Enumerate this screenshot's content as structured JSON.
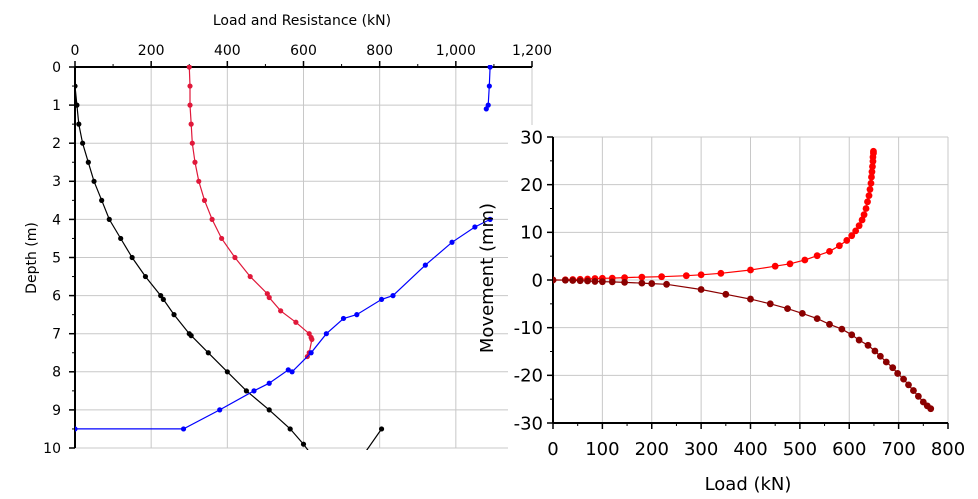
{
  "chart_data": [
    {
      "type": "line",
      "xlabel": "Load and Resistance (kN)",
      "ylabel": "Depth (m)",
      "xlim": [
        0,
        1200
      ],
      "ylim": [
        10,
        0
      ],
      "x_axis_position": "top",
      "y_inverted": true,
      "grid": true,
      "xticks": [
        0,
        200,
        400,
        600,
        800,
        1000,
        1200
      ],
      "xtick_labels": [
        "0",
        "200",
        "400",
        "600",
        "800",
        "1,000",
        "1,200"
      ],
      "yticks": [
        0,
        1,
        2,
        3,
        4,
        5,
        6,
        7,
        8,
        9,
        10
      ],
      "ytick_labels": [
        "0",
        "1",
        "2",
        "3",
        "4",
        "5",
        "6",
        "7",
        "8",
        "9",
        "10"
      ],
      "series": [
        {
          "color": "#000000",
          "points": [
            [
              0,
              0.5
            ],
            [
              5,
              1.0
            ],
            [
              10,
              1.5
            ],
            [
              20,
              2.0
            ],
            [
              35,
              2.5
            ],
            [
              50,
              3.0
            ],
            [
              70,
              3.5
            ],
            [
              90,
              4.0
            ],
            [
              120,
              4.5
            ],
            [
              150,
              5.0
            ],
            [
              185,
              5.5
            ],
            [
              225,
              6.0
            ],
            [
              232,
              6.1
            ],
            [
              260,
              6.5
            ],
            [
              300,
              7.0
            ],
            [
              305,
              7.05
            ],
            [
              350,
              7.5
            ],
            [
              400,
              8.0
            ],
            [
              450,
              8.5
            ],
            [
              510,
              9.0
            ],
            [
              565,
              9.5
            ],
            [
              600,
              9.9
            ],
            [
              630,
              10.3
            ],
            [
              700,
              11.0
            ],
            [
              805,
              9.5
            ]
          ]
        },
        {
          "color": "#e0183a",
          "points": [
            [
              300,
              0
            ],
            [
              302,
              0.5
            ],
            [
              302,
              1.0
            ],
            [
              305,
              1.5
            ],
            [
              308,
              2.0
            ],
            [
              315,
              2.5
            ],
            [
              325,
              3.0
            ],
            [
              340,
              3.5
            ],
            [
              360,
              4.0
            ],
            [
              385,
              4.5
            ],
            [
              420,
              5.0
            ],
            [
              460,
              5.5
            ],
            [
              505,
              5.95
            ],
            [
              510,
              6.05
            ],
            [
              540,
              6.4
            ],
            [
              580,
              6.7
            ],
            [
              615,
              7.0
            ],
            [
              620,
              7.1
            ],
            [
              622,
              7.15
            ],
            [
              615,
              7.5
            ],
            [
              610,
              7.6
            ]
          ]
        },
        {
          "color": "#0000ff",
          "points": [
            [
              1090,
              0
            ],
            [
              1088,
              0.5
            ],
            [
              1085,
              1.0
            ],
            [
              1080,
              1.1
            ]
          ]
        },
        {
          "color": "#0000ff",
          "points": [
            [
              0,
              9.5
            ],
            [
              285,
              9.5
            ],
            [
              380,
              9.0
            ],
            [
              470,
              8.5
            ],
            [
              510,
              8.3
            ],
            [
              560,
              7.95
            ],
            [
              570,
              8.0
            ],
            [
              620,
              7.5
            ],
            [
              660,
              7.0
            ],
            [
              705,
              6.6
            ],
            [
              740,
              6.5
            ],
            [
              805,
              6.1
            ],
            [
              835,
              6.0
            ],
            [
              920,
              5.2
            ],
            [
              990,
              4.6
            ],
            [
              1050,
              4.2
            ],
            [
              1090,
              4.0
            ]
          ]
        }
      ]
    },
    {
      "type": "line",
      "xlabel": "Load (kN)",
      "ylabel": "Movement (mm)",
      "xlim": [
        0,
        800
      ],
      "ylim": [
        -30,
        30
      ],
      "grid": true,
      "xticks": [
        0,
        100,
        200,
        300,
        400,
        500,
        600,
        700,
        800
      ],
      "xtick_labels": [
        "0",
        "100",
        "200",
        "300",
        "400",
        "500",
        "600",
        "700",
        "800"
      ],
      "yticks": [
        -30,
        -20,
        -10,
        0,
        10,
        20,
        30
      ],
      "ytick_labels": [
        "-30",
        "-20",
        "-10",
        "0",
        "10",
        "20",
        "30"
      ],
      "series": [
        {
          "color": "#ff0000",
          "points": [
            [
              0,
              0
            ],
            [
              25,
              0.05
            ],
            [
              40,
              0.1
            ],
            [
              55,
              0.15
            ],
            [
              70,
              0.2
            ],
            [
              85,
              0.3
            ],
            [
              100,
              0.35
            ],
            [
              120,
              0.4
            ],
            [
              145,
              0.5
            ],
            [
              180,
              0.6
            ],
            [
              220,
              0.7
            ],
            [
              270,
              0.9
            ],
            [
              300,
              1.1
            ],
            [
              340,
              1.4
            ],
            [
              400,
              2.1
            ],
            [
              450,
              2.9
            ],
            [
              480,
              3.4
            ],
            [
              510,
              4.2
            ],
            [
              535,
              5.1
            ],
            [
              560,
              6.0
            ],
            [
              580,
              7.2
            ],
            [
              595,
              8.3
            ],
            [
              605,
              9.3
            ],
            [
              613,
              10.3
            ],
            [
              620,
              11.4
            ],
            [
              626,
              12.6
            ],
            [
              630,
              13.7
            ],
            [
              634,
              15.0
            ],
            [
              637,
              16.4
            ],
            [
              640,
              17.7
            ],
            [
              642,
              19.0
            ],
            [
              644,
              20.3
            ],
            [
              645,
              21.6
            ],
            [
              646,
              22.7
            ],
            [
              647,
              23.8
            ],
            [
              648,
              24.9
            ],
            [
              648,
              25.8
            ],
            [
              649,
              26.6
            ],
            [
              649,
              27.0
            ]
          ]
        },
        {
          "color": "#8b0000",
          "points": [
            [
              0,
              0
            ],
            [
              25,
              -0.05
            ],
            [
              40,
              -0.1
            ],
            [
              55,
              -0.15
            ],
            [
              70,
              -0.2
            ],
            [
              85,
              -0.3
            ],
            [
              100,
              -0.35
            ],
            [
              120,
              -0.4
            ],
            [
              145,
              -0.5
            ],
            [
              180,
              -0.65
            ],
            [
              200,
              -0.75
            ],
            [
              230,
              -0.9
            ],
            [
              300,
              -2.0
            ],
            [
              350,
              -3.0
            ],
            [
              400,
              -4.0
            ],
            [
              440,
              -5.0
            ],
            [
              475,
              -6.0
            ],
            [
              505,
              -7.0
            ],
            [
              535,
              -8.1
            ],
            [
              560,
              -9.3
            ],
            [
              585,
              -10.3
            ],
            [
              605,
              -11.5
            ],
            [
              620,
              -12.6
            ],
            [
              638,
              -13.7
            ],
            [
              652,
              -14.9
            ],
            [
              663,
              -16.0
            ],
            [
              675,
              -17.2
            ],
            [
              688,
              -18.4
            ],
            [
              698,
              -19.6
            ],
            [
              710,
              -20.8
            ],
            [
              720,
              -22.0
            ],
            [
              730,
              -23.2
            ],
            [
              740,
              -24.4
            ],
            [
              750,
              -25.6
            ],
            [
              758,
              -26.4
            ],
            [
              765,
              -27.0
            ]
          ]
        }
      ]
    }
  ]
}
